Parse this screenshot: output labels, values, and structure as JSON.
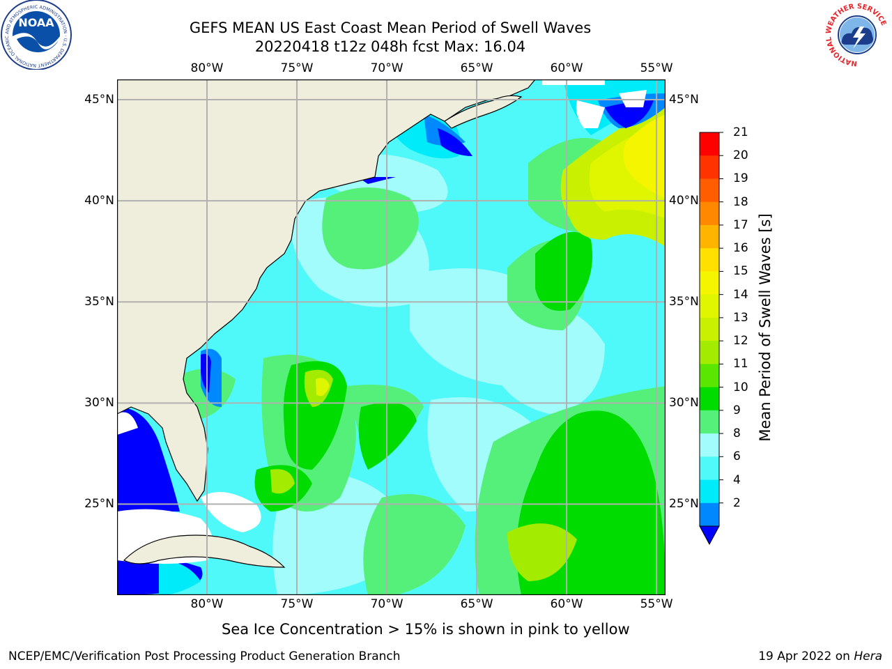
{
  "title": {
    "line1": "GEFS MEAN US East Coast Mean Period of Swell Waves",
    "line2": "20220418 t12z 048h fcst   Max: 16.04"
  },
  "map": {
    "lon_labels": [
      "80°W",
      "75°W",
      "70°W",
      "65°W",
      "60°W",
      "55°W"
    ],
    "lat_labels": [
      "45°N",
      "40°N",
      "35°N",
      "30°N",
      "25°N"
    ],
    "lon_range": [
      -85,
      -54.5
    ],
    "lat_range": [
      20.5,
      46
    ],
    "land_color": "#efeddc",
    "grid_color": "#b0b0b0"
  },
  "colorbar": {
    "label": "Mean Period of Swell Waves [s]",
    "ticks": [
      "21",
      "20",
      "19",
      "18",
      "17",
      "16",
      "15",
      "14",
      "13",
      "12",
      "11",
      "10",
      "9",
      "8",
      "6",
      "4",
      "2"
    ],
    "colors": [
      "#fe0000",
      "#ff3300",
      "#ff5d00",
      "#ff8800",
      "#ffb400",
      "#ffe000",
      "#f5f500",
      "#e0f500",
      "#c8f000",
      "#a3eb00",
      "#5ae600",
      "#00dc00",
      "#55f07a",
      "#a2fcfc",
      "#50f9f9",
      "#00ebfa",
      "#0088ff"
    ],
    "underflow_color": "#0000ff"
  },
  "footer": {
    "note": "Sea Ice Concentration > 15% is shown in pink to yellow",
    "credit": "NCEP/EMC/Verification Post Processing Product Generation Branch",
    "date": "19 Apr 2022 on",
    "machine": "Hera"
  },
  "logos": {
    "noaa_text": "NOAA",
    "noaa_ring": "NATIONAL OCEANIC AND ATMOSPHERIC ADMINISTRATION · U.S. DEPARTMENT OF COMMERCE",
    "nws_ring": "NATIONAL WEATHER SERVICE"
  }
}
